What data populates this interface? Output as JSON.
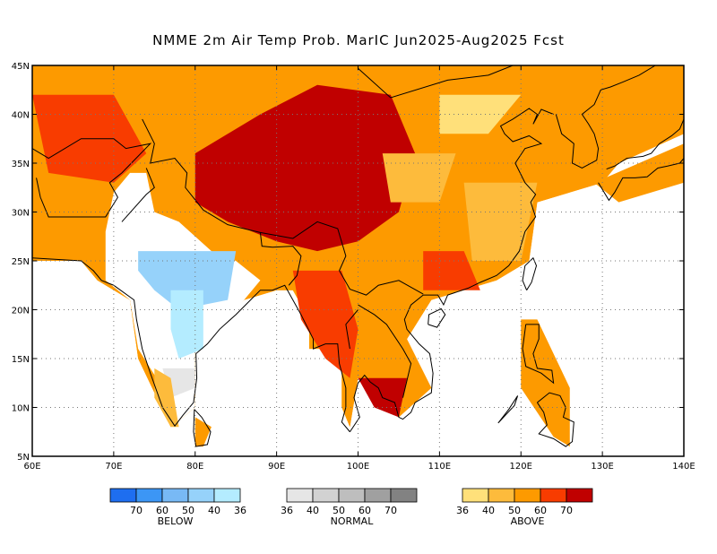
{
  "title": "NMME 2m Air Temp Prob. MarIC  Jun2025-Aug2025 Fcst",
  "map": {
    "lon_range": [
      60,
      140
    ],
    "lat_range": [
      5,
      45
    ],
    "lon_ticks": [
      "60E",
      "70E",
      "80E",
      "90E",
      "100E",
      "110E",
      "120E",
      "130E",
      "140E"
    ],
    "lat_ticks": [
      "45N",
      "40N",
      "35N",
      "30N",
      "25N",
      "20N",
      "15N",
      "10N",
      "5N"
    ],
    "grid": "dotted",
    "colors": {
      "above_36": "#ffe07a",
      "above_40": "#fdbb3c",
      "above_50": "#fd9a00",
      "above_60": "#f83c00",
      "above_70": "#c00000",
      "below_36": "#b4ecff",
      "below_40": "#96d2fa",
      "below_50": "#78b9f5",
      "normal_36": "#e6e6e6",
      "normal_40": "#d2d2d2"
    }
  },
  "legend": {
    "below": {
      "label": "BELOW",
      "ticks": [
        "70",
        "60",
        "50",
        "40",
        "36"
      ],
      "colors": [
        "#1e6ef0",
        "#3c96f5",
        "#78b9f5",
        "#96d2fa",
        "#b4ecff"
      ]
    },
    "normal": {
      "label": "NORMAL",
      "ticks": [
        "36",
        "40",
        "50",
        "60",
        "70"
      ],
      "colors": [
        "#e6e6e6",
        "#d2d2d2",
        "#bebebe",
        "#a0a0a0",
        "#828282"
      ]
    },
    "above": {
      "label": "ABOVE",
      "ticks": [
        "36",
        "40",
        "50",
        "60",
        "70"
      ],
      "colors": [
        "#ffe07a",
        "#fdbb3c",
        "#fd9a00",
        "#f83c00",
        "#c00000"
      ]
    }
  }
}
